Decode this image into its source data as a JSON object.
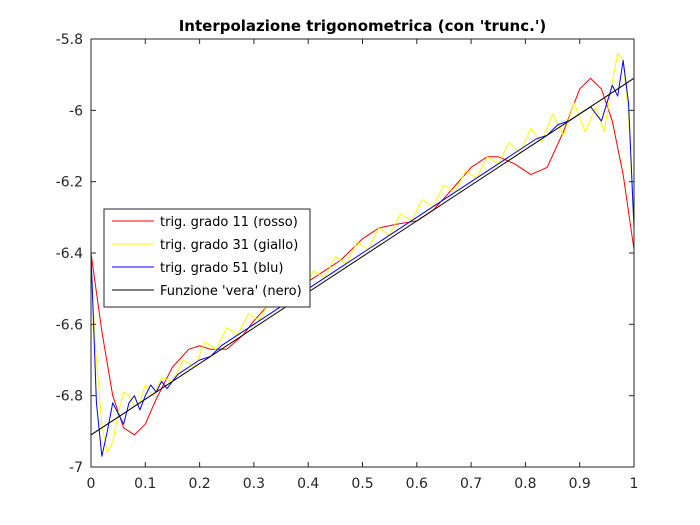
{
  "chart_data": {
    "type": "line",
    "title": "Interpolazione trigonometrica (con 'trunc.')",
    "xlabel": "",
    "ylabel": "",
    "xlim": [
      0,
      1
    ],
    "ylim": [
      -7,
      -5.8
    ],
    "xticks": [
      0,
      0.1,
      0.2,
      0.3,
      0.4,
      0.5,
      0.6,
      0.7,
      0.8,
      0.9,
      1
    ],
    "xtick_labels": [
      "0",
      "0.1",
      "0.2",
      "0.3",
      "0.4",
      "0.5",
      "0.6",
      "0.7",
      "0.8",
      "0.9",
      "1"
    ],
    "yticks": [
      -7,
      -6.8,
      -6.6,
      -6.4,
      -6.2,
      -6,
      -5.8
    ],
    "ytick_labels": [
      "-7",
      "-6.8",
      "-6.6",
      "-6.4",
      "-6.2",
      "-6",
      "-5.8"
    ],
    "grid": false,
    "legend_position": "middle-left",
    "series": [
      {
        "name": "trig. grado 11 (rosso)",
        "color": "#ff0000",
        "x": [
          0,
          0.02,
          0.04,
          0.06,
          0.08,
          0.1,
          0.12,
          0.15,
          0.18,
          0.2,
          0.22,
          0.25,
          0.28,
          0.3,
          0.33,
          0.36,
          0.4,
          0.43,
          0.46,
          0.5,
          0.53,
          0.56,
          0.6,
          0.63,
          0.66,
          0.7,
          0.73,
          0.75,
          0.78,
          0.81,
          0.84,
          0.87,
          0.9,
          0.92,
          0.94,
          0.96,
          0.98,
          1
        ],
        "y": [
          -6.4,
          -6.62,
          -6.8,
          -6.89,
          -6.91,
          -6.88,
          -6.81,
          -6.72,
          -6.67,
          -6.66,
          -6.67,
          -6.67,
          -6.63,
          -6.59,
          -6.54,
          -6.5,
          -6.48,
          -6.45,
          -6.42,
          -6.36,
          -6.33,
          -6.32,
          -6.31,
          -6.28,
          -6.23,
          -6.16,
          -6.13,
          -6.13,
          -6.15,
          -6.18,
          -6.16,
          -6.06,
          -5.94,
          -5.91,
          -5.94,
          -6.03,
          -6.18,
          -6.39
        ]
      },
      {
        "name": "trig. grado 31 (giallo)",
        "color": "#ffff00",
        "x": [
          0,
          0.01,
          0.02,
          0.03,
          0.04,
          0.05,
          0.06,
          0.07,
          0.08,
          0.09,
          0.1,
          0.115,
          0.13,
          0.15,
          0.17,
          0.19,
          0.21,
          0.23,
          0.25,
          0.27,
          0.29,
          0.31,
          0.33,
          0.35,
          0.37,
          0.39,
          0.41,
          0.43,
          0.45,
          0.47,
          0.49,
          0.51,
          0.53,
          0.55,
          0.57,
          0.59,
          0.61,
          0.63,
          0.65,
          0.67,
          0.69,
          0.71,
          0.73,
          0.75,
          0.77,
          0.79,
          0.81,
          0.83,
          0.85,
          0.87,
          0.89,
          0.91,
          0.93,
          0.945,
          0.96,
          0.97,
          0.98,
          0.99,
          1
        ],
        "y": [
          -6.45,
          -6.7,
          -6.88,
          -6.96,
          -6.93,
          -6.85,
          -6.79,
          -6.8,
          -6.83,
          -6.82,
          -6.77,
          -6.8,
          -6.75,
          -6.76,
          -6.7,
          -6.72,
          -6.65,
          -6.67,
          -6.61,
          -6.63,
          -6.57,
          -6.59,
          -6.53,
          -6.55,
          -6.49,
          -6.51,
          -6.45,
          -6.47,
          -6.41,
          -6.43,
          -6.37,
          -6.39,
          -6.33,
          -6.35,
          -6.29,
          -6.31,
          -6.25,
          -6.27,
          -6.21,
          -6.23,
          -6.17,
          -6.19,
          -6.13,
          -6.15,
          -6.09,
          -6.12,
          -6.05,
          -6.09,
          -6.01,
          -6.07,
          -5.98,
          -6.06,
          -5.99,
          -6.06,
          -5.92,
          -5.84,
          -5.86,
          -6.02,
          -6.33
        ]
      },
      {
        "name": "trig. grado 51 (blu)",
        "color": "#0000ff",
        "x": [
          0,
          0.01,
          0.02,
          0.03,
          0.04,
          0.05,
          0.06,
          0.07,
          0.08,
          0.09,
          0.1,
          0.11,
          0.12,
          0.13,
          0.14,
          0.16,
          0.18,
          0.2,
          0.22,
          0.24,
          0.26,
          0.28,
          0.3,
          0.32,
          0.34,
          0.36,
          0.38,
          0.4,
          0.42,
          0.44,
          0.46,
          0.48,
          0.5,
          0.52,
          0.54,
          0.56,
          0.58,
          0.6,
          0.62,
          0.64,
          0.66,
          0.68,
          0.7,
          0.72,
          0.74,
          0.76,
          0.78,
          0.8,
          0.82,
          0.84,
          0.86,
          0.88,
          0.9,
          0.92,
          0.94,
          0.95,
          0.96,
          0.97,
          0.98,
          0.99,
          1
        ],
        "y": [
          -6.4,
          -6.82,
          -6.97,
          -6.9,
          -6.82,
          -6.85,
          -6.88,
          -6.82,
          -6.8,
          -6.84,
          -6.8,
          -6.77,
          -6.79,
          -6.76,
          -6.78,
          -6.74,
          -6.72,
          -6.7,
          -6.69,
          -6.66,
          -6.64,
          -6.62,
          -6.6,
          -6.58,
          -6.56,
          -6.54,
          -6.52,
          -6.5,
          -6.48,
          -6.46,
          -6.44,
          -6.42,
          -6.4,
          -6.38,
          -6.36,
          -6.34,
          -6.32,
          -6.3,
          -6.28,
          -6.26,
          -6.24,
          -6.22,
          -6.2,
          -6.18,
          -6.16,
          -6.14,
          -6.12,
          -6.1,
          -6.08,
          -6.07,
          -6.04,
          -6.03,
          -6.01,
          -5.99,
          -6.03,
          -5.98,
          -5.93,
          -5.96,
          -5.86,
          -5.98,
          -6.33
        ]
      },
      {
        "name": "Funzione 'vera' (nero)",
        "color": "#000000",
        "x": [
          0,
          1
        ],
        "y": [
          -6.91,
          -5.91
        ]
      }
    ]
  }
}
